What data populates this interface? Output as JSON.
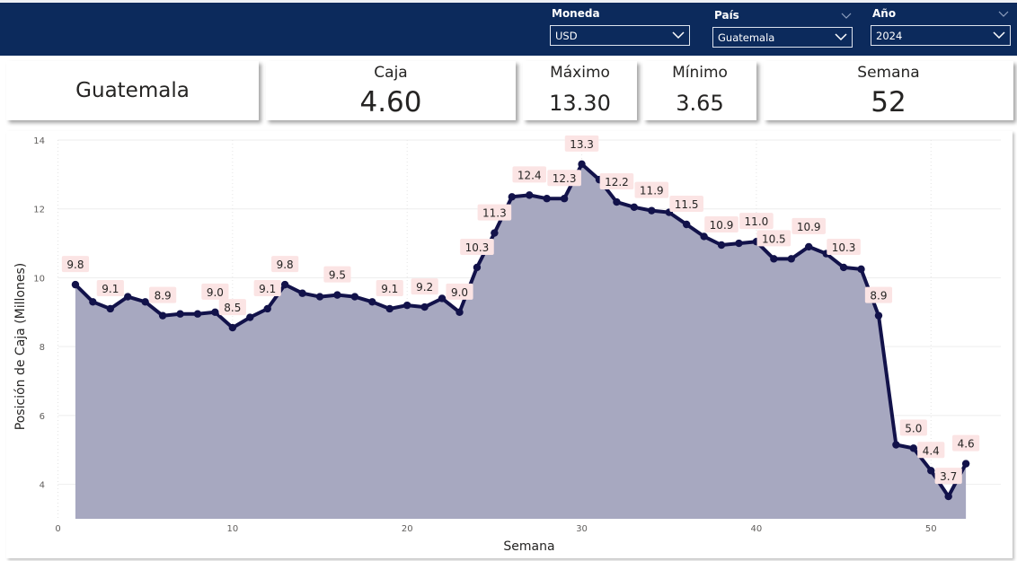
{
  "filters": {
    "moneda": {
      "label": "Moneda",
      "value": "USD"
    },
    "pais": {
      "label": "País",
      "value": "Guatemala"
    },
    "anio": {
      "label": "Año",
      "value": "2024"
    }
  },
  "kpis": {
    "country": "Guatemala",
    "caja": {
      "title": "Caja",
      "value": "4.60"
    },
    "maximo": {
      "title": "Máximo",
      "value": "13.30"
    },
    "minimo": {
      "title": "Mínimo",
      "value": "3.65"
    },
    "semana": {
      "title": "Semana",
      "value": "52"
    }
  },
  "colors": {
    "header": "#0c2a5c",
    "line": "#12124a",
    "area": "#a7a8c0",
    "label_bg": "#fbe4e4"
  },
  "chart_data": {
    "type": "area",
    "xlabel": "Semana",
    "ylabel": "Posición de Caja (Millones)",
    "xlim": [
      0,
      54
    ],
    "ylim": [
      3,
      14
    ],
    "xticks": [
      0,
      10,
      20,
      30,
      40,
      50
    ],
    "yticks": [
      4,
      6,
      8,
      10,
      12,
      14
    ],
    "grid": true,
    "x": [
      1,
      2,
      3,
      4,
      5,
      6,
      7,
      8,
      9,
      10,
      11,
      12,
      13,
      14,
      15,
      16,
      17,
      18,
      19,
      20,
      21,
      22,
      23,
      24,
      25,
      26,
      27,
      28,
      29,
      30,
      31,
      32,
      33,
      34,
      35,
      36,
      37,
      38,
      39,
      40,
      41,
      42,
      43,
      44,
      45,
      46,
      47,
      48,
      49,
      50,
      51,
      52
    ],
    "y": [
      9.8,
      9.3,
      9.1,
      9.45,
      9.3,
      8.9,
      8.95,
      8.95,
      9.0,
      8.55,
      8.85,
      9.1,
      9.8,
      9.55,
      9.45,
      9.5,
      9.45,
      9.3,
      9.1,
      9.2,
      9.15,
      9.4,
      9.0,
      10.3,
      11.3,
      12.35,
      12.4,
      12.3,
      12.3,
      13.3,
      12.85,
      12.2,
      12.05,
      11.95,
      11.9,
      11.55,
      11.2,
      10.95,
      11.0,
      11.05,
      10.55,
      10.55,
      10.9,
      10.7,
      10.3,
      10.25,
      8.9,
      5.15,
      5.05,
      4.4,
      3.65,
      4.6
    ],
    "data_labels": [
      {
        "x": 1,
        "text": "9.8"
      },
      {
        "x": 3,
        "text": "9.1"
      },
      {
        "x": 6,
        "text": "8.9"
      },
      {
        "x": 9,
        "text": "9.0"
      },
      {
        "x": 10,
        "text": "8.5"
      },
      {
        "x": 12,
        "text": "9.1"
      },
      {
        "x": 13,
        "text": "9.8"
      },
      {
        "x": 16,
        "text": "9.5"
      },
      {
        "x": 19,
        "text": "9.1"
      },
      {
        "x": 21,
        "text": "9.2"
      },
      {
        "x": 23,
        "text": "9.0"
      },
      {
        "x": 24,
        "text": "10.3"
      },
      {
        "x": 25,
        "text": "11.3"
      },
      {
        "x": 27,
        "text": "12.4"
      },
      {
        "x": 29,
        "text": "12.3"
      },
      {
        "x": 30,
        "text": "13.3"
      },
      {
        "x": 32,
        "text": "12.2"
      },
      {
        "x": 34,
        "text": "11.9"
      },
      {
        "x": 36,
        "text": "11.5"
      },
      {
        "x": 38,
        "text": "10.9"
      },
      {
        "x": 40,
        "text": "11.0"
      },
      {
        "x": 41,
        "text": "10.5"
      },
      {
        "x": 43,
        "text": "10.9"
      },
      {
        "x": 45,
        "text": "10.3"
      },
      {
        "x": 47,
        "text": "8.9"
      },
      {
        "x": 49,
        "text": "5.0"
      },
      {
        "x": 50,
        "text": "4.4"
      },
      {
        "x": 51,
        "text": "3.7"
      },
      {
        "x": 52,
        "text": "4.6"
      }
    ]
  }
}
